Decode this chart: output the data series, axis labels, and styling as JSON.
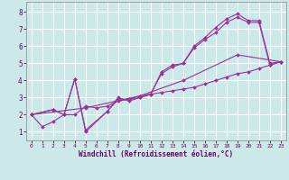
{
  "xlabel": "Windchill (Refroidissement éolien,°C)",
  "bg_color": "#cce8e8",
  "grid_color": "#ffffff",
  "line_color": "#993399",
  "ylim": [
    0.5,
    8.6
  ],
  "xlim": [
    -0.5,
    23.5
  ],
  "yticks": [
    1,
    2,
    3,
    4,
    5,
    6,
    7,
    8
  ],
  "xticks": [
    0,
    1,
    2,
    3,
    4,
    5,
    6,
    7,
    8,
    9,
    10,
    11,
    12,
    13,
    14,
    15,
    16,
    17,
    18,
    19,
    20,
    21,
    22,
    23
  ],
  "lines": [
    {
      "x": [
        0,
        2,
        3,
        4,
        5,
        7,
        8,
        9,
        10,
        11,
        12,
        13,
        14,
        15,
        16,
        17,
        18,
        19,
        20,
        21,
        22,
        23
      ],
      "y": [
        2.0,
        2.3,
        2.0,
        4.1,
        1.1,
        2.2,
        3.0,
        2.8,
        3.0,
        3.2,
        4.4,
        4.8,
        5.0,
        6.0,
        6.5,
        7.1,
        7.6,
        7.9,
        7.5,
        7.5,
        5.0,
        5.1
      ]
    },
    {
      "x": [
        0,
        2,
        3,
        4,
        5,
        7,
        8,
        9,
        10,
        11,
        12,
        13,
        14,
        15,
        16,
        17,
        18,
        19,
        20,
        21,
        22,
        23
      ],
      "y": [
        2.0,
        2.3,
        2.0,
        4.1,
        1.0,
        2.2,
        2.9,
        2.9,
        3.0,
        3.2,
        4.5,
        4.9,
        5.0,
        5.9,
        6.4,
        6.8,
        7.4,
        7.7,
        7.4,
        7.4,
        4.9,
        5.1
      ]
    },
    {
      "x": [
        0,
        1,
        2,
        3,
        4,
        5,
        6,
        7,
        8,
        9,
        10,
        11,
        12,
        13,
        14,
        15,
        16,
        17,
        18,
        19,
        20,
        21,
        22,
        23
      ],
      "y": [
        2.0,
        1.3,
        1.6,
        2.0,
        2.0,
        2.5,
        2.4,
        2.5,
        2.8,
        2.9,
        3.1,
        3.2,
        3.3,
        3.4,
        3.5,
        3.6,
        3.8,
        4.0,
        4.2,
        4.4,
        4.5,
        4.7,
        4.9,
        5.1
      ]
    },
    {
      "x": [
        0,
        5,
        10,
        14,
        19,
        23
      ],
      "y": [
        2.0,
        2.4,
        3.1,
        4.0,
        5.5,
        5.1
      ]
    }
  ]
}
